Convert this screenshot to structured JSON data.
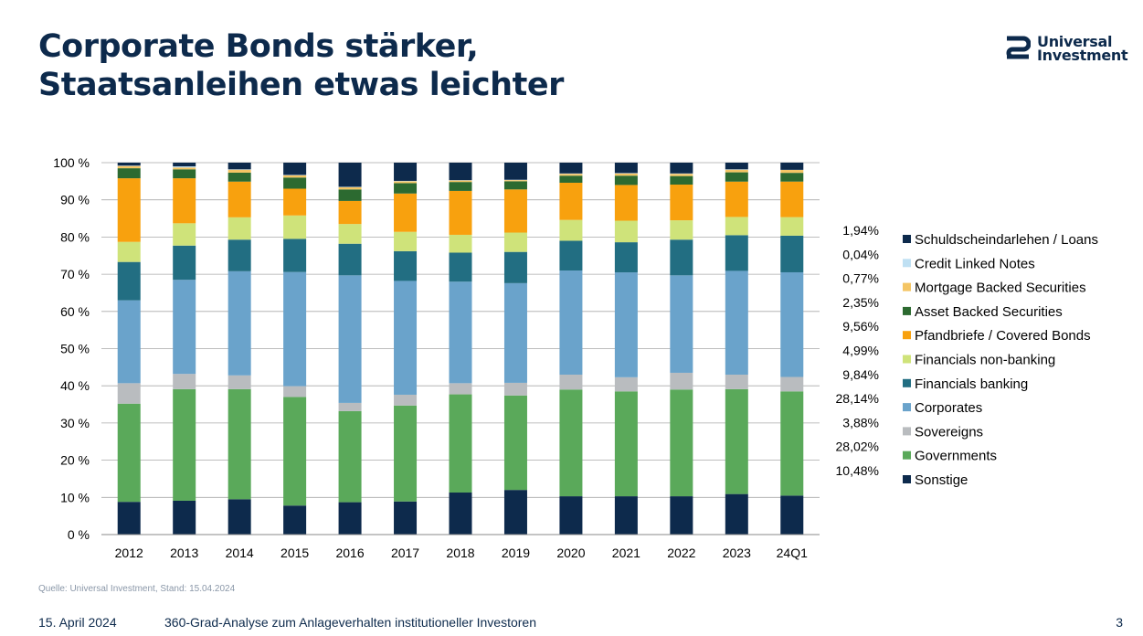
{
  "title": {
    "line1": "Corporate Bonds stärker,",
    "line2": "Staatsanleihen etwas leichter"
  },
  "logo": {
    "line1": "Universal",
    "line2": "Investment"
  },
  "source": "Quelle: Universal Investment, Stand: 15.04.2024",
  "footer": {
    "date": "15. April 2024",
    "text": "360-Grad-Analyse zum Anlageverhalten institutioneller Investoren",
    "page": "3"
  },
  "colors": {
    "brand": "#0d2a4c",
    "Sonstige": "#0d2a4c",
    "Governments": "#5aa95a",
    "Sovereigns": "#b9bcbf",
    "Corporates": "#6aa3cb",
    "Financials banking": "#226e82",
    "Financials non-banking": "#cfe37a",
    "Pfandbriefe / Covered Bonds": "#f8a10e",
    "Asset Backed Securities": "#2c6a30",
    "Mortgage Backed Securities": "#f4c564",
    "Credit Linked Notes": "#bfe0f3",
    "Schuldscheindarlehen / Loans": "#0d2a4c"
  },
  "chart_data": {
    "type": "bar",
    "stacked": true,
    "categories": [
      "2012",
      "2013",
      "2014",
      "2015",
      "2016",
      "2017",
      "2018",
      "2019",
      "2020",
      "2021",
      "2022",
      "2023",
      "24Q1"
    ],
    "ylim": [
      0,
      100
    ],
    "yticks": [
      "0 %",
      "10 %",
      "20 %",
      "30 %",
      "40 %",
      "50 %",
      "60 %",
      "70 %",
      "80 %",
      "90 %",
      "100 %"
    ],
    "grid": true,
    "legend_position": "right",
    "series": [
      {
        "name": "Sonstige",
        "values": [
          8.8,
          9.1,
          9.5,
          7.8,
          8.7,
          8.9,
          11.3,
          12.0,
          10.3,
          10.3,
          10.3,
          10.9,
          10.48
        ]
      },
      {
        "name": "Governments",
        "values": [
          26.4,
          30.0,
          29.6,
          29.2,
          24.5,
          25.8,
          26.4,
          25.4,
          28.7,
          28.2,
          28.7,
          28.2,
          28.02
        ]
      },
      {
        "name": "Sovereigns",
        "values": [
          5.5,
          4.1,
          3.7,
          2.9,
          2.2,
          2.9,
          3.0,
          3.4,
          4.0,
          3.8,
          4.5,
          3.9,
          3.88
        ]
      },
      {
        "name": "Corporates",
        "values": [
          22.3,
          25.3,
          28.0,
          30.7,
          34.3,
          30.6,
          27.3,
          26.8,
          28.0,
          28.2,
          26.2,
          27.9,
          28.14
        ]
      },
      {
        "name": "Financials banking",
        "values": [
          10.3,
          9.2,
          8.5,
          8.9,
          8.5,
          8.0,
          7.8,
          8.4,
          8.0,
          8.1,
          9.6,
          9.6,
          9.84
        ]
      },
      {
        "name": "Financials non-banking",
        "values": [
          5.4,
          6.0,
          6.0,
          6.3,
          5.3,
          5.2,
          4.8,
          5.2,
          5.6,
          5.8,
          5.2,
          4.9,
          4.99
        ]
      },
      {
        "name": "Pfandbriefe / Covered Bonds",
        "values": [
          17.1,
          12.1,
          9.6,
          7.2,
          6.2,
          10.3,
          11.8,
          11.6,
          10.0,
          9.6,
          9.6,
          9.5,
          9.56
        ]
      },
      {
        "name": "Asset Backed Securities",
        "values": [
          2.7,
          2.4,
          2.4,
          3.0,
          3.1,
          2.8,
          2.4,
          2.2,
          1.9,
          2.5,
          2.3,
          2.5,
          2.35
        ]
      },
      {
        "name": "Mortgage Backed Securities",
        "values": [
          0.6,
          0.5,
          0.8,
          0.6,
          0.6,
          0.5,
          0.4,
          0.3,
          0.5,
          0.6,
          0.6,
          0.7,
          0.77
        ]
      },
      {
        "name": "Credit Linked Notes",
        "values": [
          0.1,
          0.3,
          0.1,
          0.1,
          0.1,
          0.1,
          0.1,
          0.1,
          0.1,
          0.1,
          0.1,
          0.1,
          0.04
        ]
      },
      {
        "name": "Schuldscheindarlehen / Loans",
        "values": [
          0.8,
          1.0,
          1.8,
          3.3,
          6.5,
          4.9,
          4.7,
          4.6,
          2.9,
          2.8,
          2.9,
          1.8,
          1.94
        ]
      }
    ],
    "legend": [
      {
        "name": "Schuldscheindarlehen / Loans",
        "label": "1,94%"
      },
      {
        "name": "Credit Linked Notes",
        "label": "0,04%"
      },
      {
        "name": "Mortgage Backed Securities",
        "label": "0,77%"
      },
      {
        "name": "Asset Backed Securities",
        "label": "2,35%"
      },
      {
        "name": "Pfandbriefe / Covered Bonds",
        "label": "9,56%"
      },
      {
        "name": "Financials non-banking",
        "label": "4,99%"
      },
      {
        "name": "Financials banking",
        "label": "9,84%"
      },
      {
        "name": "Corporates",
        "label": "28,14%"
      },
      {
        "name": "Sovereigns",
        "label": "3,88%"
      },
      {
        "name": "Governments",
        "label": "28,02%"
      },
      {
        "name": "Sonstige",
        "label": "10,48%"
      }
    ]
  }
}
